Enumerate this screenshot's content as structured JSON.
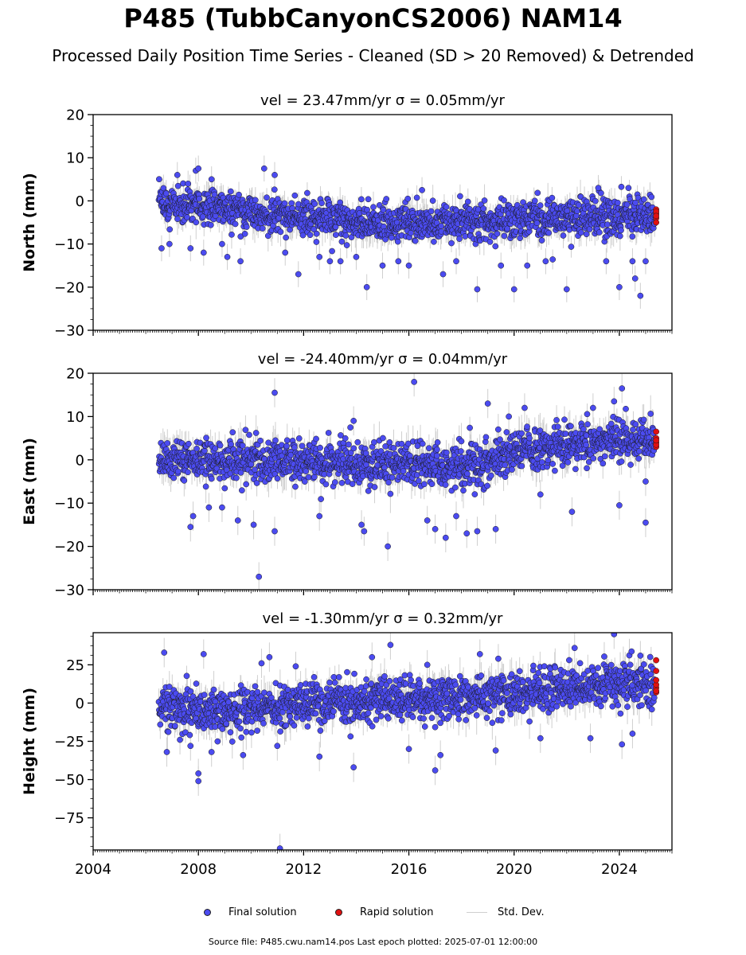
{
  "title": "P485 (TubbCanyonCS2006) NAM14",
  "subtitle": "Processed Daily Position Time Series - Cleaned (SD > 20 Removed) & Detrended",
  "legend": {
    "final": "Final solution",
    "rapid": "Rapid solution",
    "std": "Std. Dev."
  },
  "footer": "Source file: P485.cwu.nam14.pos  Last epoch plotted: 2025-07-01 12:00:00",
  "colors": {
    "final": "#4b4bf0",
    "rapid": "#e01010",
    "std": "#cfcfcf",
    "edge": "#1a1a1a"
  },
  "chart_data": [
    {
      "type": "scatter",
      "component": "North",
      "title": "vel = 23.47mm/yr   σ = 0.05mm/yr",
      "ylabel": "North (mm)",
      "xlim": [
        2004,
        2026
      ],
      "ylim": [
        -30,
        20
      ],
      "yticks": [
        -30,
        -20,
        -10,
        0,
        10,
        20
      ],
      "xticks": [
        2004,
        2008,
        2012,
        2016,
        2020,
        2024
      ],
      "show_xticklabels": false,
      "grid": false,
      "trend": [
        [
          2006.5,
          -1
        ],
        [
          2008,
          -1
        ],
        [
          2010,
          -2.5
        ],
        [
          2012,
          -4
        ],
        [
          2014,
          -5
        ],
        [
          2016,
          -5
        ],
        [
          2018,
          -5.5
        ],
        [
          2020,
          -4.5
        ],
        [
          2022,
          -4
        ],
        [
          2025.4,
          -3.5
        ]
      ],
      "scatter_sd": 2.5,
      "outliers": [
        [
          2006.6,
          -11
        ],
        [
          2006.9,
          -10
        ],
        [
          2007.2,
          6
        ],
        [
          2007.7,
          -11
        ],
        [
          2007.9,
          7
        ],
        [
          2008.0,
          7.5
        ],
        [
          2008.2,
          -12
        ],
        [
          2008.5,
          5
        ],
        [
          2008.9,
          -10
        ],
        [
          2009.1,
          -13
        ],
        [
          2009.6,
          -14
        ],
        [
          2010.5,
          7.5
        ],
        [
          2010.9,
          6
        ],
        [
          2011.3,
          -12
        ],
        [
          2011.8,
          -17
        ],
        [
          2012.6,
          -13
        ],
        [
          2013.0,
          -14
        ],
        [
          2013.4,
          -14
        ],
        [
          2014.0,
          -13
        ],
        [
          2014.4,
          -20
        ],
        [
          2015.0,
          -15
        ],
        [
          2015.6,
          -14
        ],
        [
          2016.0,
          -15
        ],
        [
          2016.5,
          2.5
        ],
        [
          2017.3,
          -17
        ],
        [
          2017.8,
          -14
        ],
        [
          2018.6,
          -20.5
        ],
        [
          2019.5,
          -15
        ],
        [
          2020.0,
          -20.5
        ],
        [
          2020.5,
          -15
        ],
        [
          2021.2,
          -14
        ],
        [
          2022.0,
          -20.5
        ],
        [
          2023.2,
          3
        ],
        [
          2023.5,
          -14
        ],
        [
          2024.0,
          -20
        ],
        [
          2024.5,
          -14
        ],
        [
          2024.8,
          -22
        ],
        [
          2024.6,
          -18
        ],
        [
          2025.0,
          -14
        ]
      ],
      "rapid": [
        [
          2025.4,
          -2
        ],
        [
          2025.4,
          -3
        ],
        [
          2025.4,
          -4
        ],
        [
          2025.4,
          -5
        ],
        [
          2025.4,
          -2.5
        ],
        [
          2025.4,
          -3.5
        ]
      ]
    },
    {
      "type": "scatter",
      "component": "East",
      "title": "vel = -24.40mm/yr   σ = 0.04mm/yr",
      "ylabel": "East (mm)",
      "xlim": [
        2004,
        2026
      ],
      "ylim": [
        -30,
        20
      ],
      "yticks": [
        -30,
        -20,
        -10,
        0,
        10,
        20
      ],
      "xticks": [
        2004,
        2008,
        2012,
        2016,
        2020,
        2024
      ],
      "show_xticklabels": false,
      "grid": false,
      "trend": [
        [
          2006.5,
          0
        ],
        [
          2010,
          0
        ],
        [
          2012,
          -0.5
        ],
        [
          2014,
          -1
        ],
        [
          2016,
          -1
        ],
        [
          2018,
          -1.5
        ],
        [
          2019,
          -0.5
        ],
        [
          2020,
          2
        ],
        [
          2022,
          3.5
        ],
        [
          2024,
          4.5
        ],
        [
          2025.4,
          5
        ]
      ],
      "scatter_sd": 2.8,
      "outliers": [
        [
          2007.7,
          -15.5
        ],
        [
          2007.8,
          -13
        ],
        [
          2008.4,
          -11
        ],
        [
          2008.9,
          -11
        ],
        [
          2009.5,
          -14
        ],
        [
          2010.1,
          -15
        ],
        [
          2010.3,
          -27
        ],
        [
          2010.9,
          -16.5
        ],
        [
          2010.9,
          15.5
        ],
        [
          2012.6,
          -13
        ],
        [
          2013.9,
          9
        ],
        [
          2014.2,
          -15
        ],
        [
          2014.3,
          -16.5
        ],
        [
          2015.2,
          -20
        ],
        [
          2016.2,
          18
        ],
        [
          2016.7,
          -14
        ],
        [
          2017.0,
          -16
        ],
        [
          2017.4,
          -18
        ],
        [
          2017.8,
          -13
        ],
        [
          2018.2,
          -17
        ],
        [
          2018.6,
          -16.5
        ],
        [
          2019.0,
          13
        ],
        [
          2019.3,
          -16
        ],
        [
          2019.8,
          10
        ],
        [
          2020.4,
          12
        ],
        [
          2021.0,
          -8
        ],
        [
          2022.2,
          -12
        ],
        [
          2023.0,
          12
        ],
        [
          2023.8,
          13.5
        ],
        [
          2024.1,
          16.5
        ],
        [
          2024.0,
          -10.5
        ],
        [
          2025.0,
          -14.5
        ],
        [
          2025.0,
          -5
        ]
      ],
      "rapid": [
        [
          2025.4,
          3
        ],
        [
          2025.4,
          4
        ],
        [
          2025.4,
          5
        ],
        [
          2025.4,
          6.5
        ],
        [
          2025.4,
          3.5
        ],
        [
          2025.4,
          4.5
        ]
      ]
    },
    {
      "type": "scatter",
      "component": "Height",
      "title": "vel = -1.30mm/yr   σ = 0.32mm/yr",
      "ylabel": "Height (mm)",
      "xlim": [
        2004,
        2026
      ],
      "ylim": [
        -96,
        46
      ],
      "yticks": [
        -75,
        -50,
        -25,
        0,
        25
      ],
      "xticks": [
        2004,
        2008,
        2012,
        2016,
        2020,
        2024
      ],
      "show_xticklabels": true,
      "grid": false,
      "trend": [
        [
          2006.5,
          -3
        ],
        [
          2008,
          -5
        ],
        [
          2010,
          -3
        ],
        [
          2012,
          -2
        ],
        [
          2014,
          1
        ],
        [
          2016,
          3
        ],
        [
          2018,
          3
        ],
        [
          2020,
          6
        ],
        [
          2022,
          9
        ],
        [
          2024,
          12
        ],
        [
          2025.4,
          12
        ]
      ],
      "scatter_sd": 8,
      "outliers": [
        [
          2006.7,
          33
        ],
        [
          2006.8,
          -32
        ],
        [
          2007.3,
          -24
        ],
        [
          2007.7,
          -28
        ],
        [
          2008.0,
          -46
        ],
        [
          2008.0,
          -51
        ],
        [
          2008.2,
          32
        ],
        [
          2008.5,
          -32
        ],
        [
          2009.7,
          -34
        ],
        [
          2010.4,
          26
        ],
        [
          2010.7,
          30
        ],
        [
          2011.1,
          -95
        ],
        [
          2011.0,
          -28
        ],
        [
          2011.7,
          24
        ],
        [
          2012.6,
          -35
        ],
        [
          2013.9,
          -42
        ],
        [
          2014.6,
          30
        ],
        [
          2015.3,
          38
        ],
        [
          2016.0,
          -30
        ],
        [
          2016.7,
          25
        ],
        [
          2017.0,
          -44
        ],
        [
          2017.2,
          -34
        ],
        [
          2018.7,
          32
        ],
        [
          2019.3,
          -31
        ],
        [
          2019.4,
          29
        ],
        [
          2021.0,
          -23
        ],
        [
          2022.3,
          36
        ],
        [
          2022.9,
          -23
        ],
        [
          2023.8,
          45
        ],
        [
          2024.1,
          -27
        ],
        [
          2024.8,
          31
        ],
        [
          2024.5,
          -20
        ]
      ],
      "rapid": [
        [
          2025.4,
          7
        ],
        [
          2025.4,
          10
        ],
        [
          2025.4,
          12
        ],
        [
          2025.4,
          15
        ],
        [
          2025.4,
          21
        ],
        [
          2025.4,
          28
        ],
        [
          2025.4,
          8
        ]
      ]
    }
  ]
}
